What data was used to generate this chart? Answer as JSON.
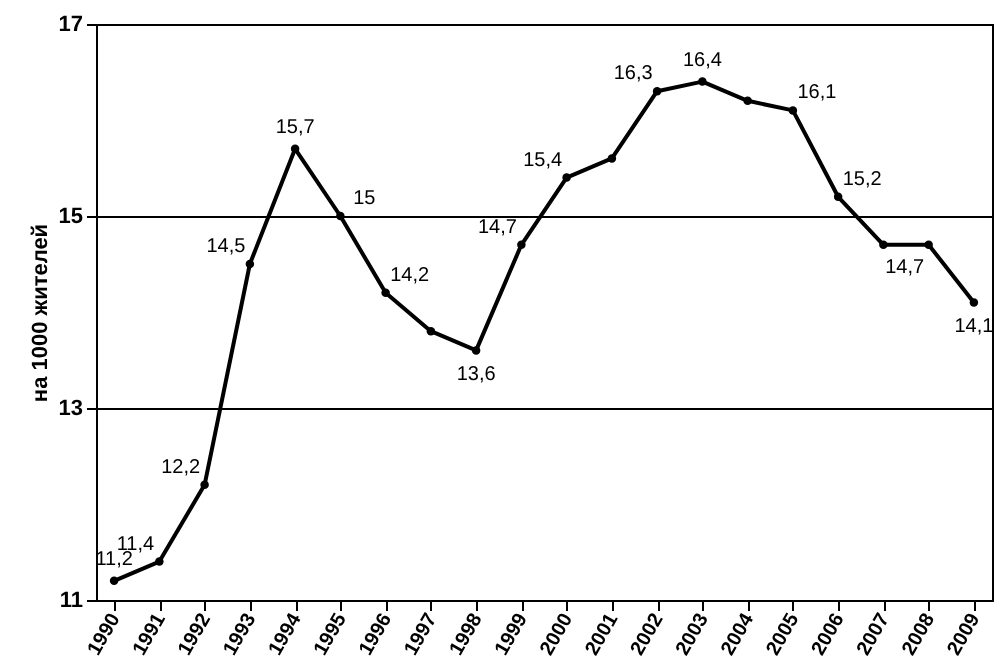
{
  "chart_data": {
    "type": "line",
    "ylabel": "на 1000 жителей",
    "categories": [
      "1990",
      "1991",
      "1992",
      "1993",
      "1994",
      "1995",
      "1996",
      "1997",
      "1998",
      "1999",
      "2000",
      "2001",
      "2002",
      "2003",
      "2004",
      "2005",
      "2006",
      "2007",
      "2008",
      "2009"
    ],
    "values": [
      11.2,
      11.4,
      12.2,
      14.5,
      15.7,
      15,
      14.2,
      13.8,
      13.6,
      14.7,
      15.4,
      15.6,
      16.3,
      16.4,
      16.2,
      16.1,
      15.2,
      14.7,
      14.7,
      14.1
    ],
    "value_labels": [
      "11,2",
      "11,4",
      "12,2",
      "14,5",
      "15,7",
      "15",
      "14,2",
      null,
      "13,6",
      "14,7",
      "15,4",
      null,
      "16,3",
      "16,4",
      null,
      "16,1",
      "15,2",
      null,
      "14,7",
      "14,1"
    ],
    "color": "#000000",
    "ylim": [
      11,
      17
    ],
    "yticks": [
      11,
      13,
      15,
      17
    ],
    "grid": "y",
    "marker": "circle",
    "line_style": "solid"
  }
}
